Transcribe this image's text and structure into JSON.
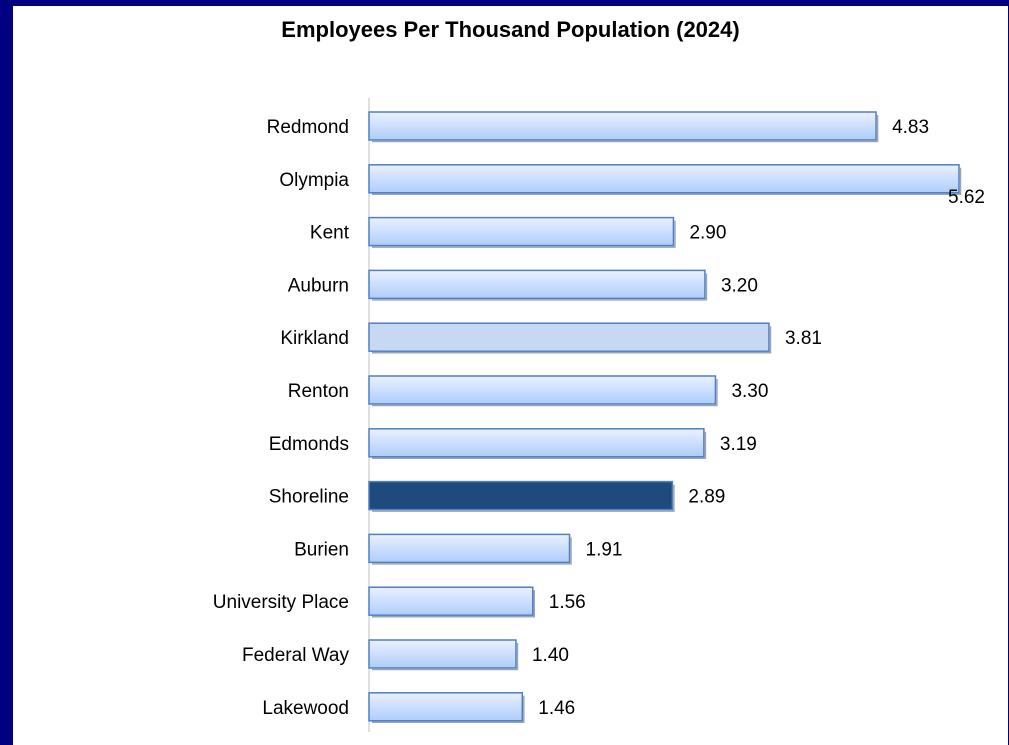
{
  "chart_data": {
    "type": "bar",
    "orientation": "horizontal",
    "title": "Employees Per Thousand Population (2024)",
    "xlabel": "",
    "ylabel": "",
    "xlim": [
      0,
      5.62
    ],
    "grid": false,
    "legend": "none",
    "categories": [
      "Redmond",
      "Olympia",
      "Kent",
      "Auburn",
      "Kirkland",
      "Renton",
      "Edmonds",
      "Shoreline",
      "Burien",
      "University Place",
      "Federal Way",
      "Lakewood"
    ],
    "values": [
      4.83,
      5.62,
      2.9,
      3.2,
      3.81,
      3.3,
      3.19,
      2.89,
      1.91,
      1.56,
      1.4,
      1.46
    ],
    "value_labels": [
      "4.83",
      "5.62",
      "2.90",
      "3.20",
      "3.81",
      "3.30",
      "3.19",
      "2.89",
      "1.91",
      "1.56",
      "1.40",
      "1.46"
    ],
    "highlight": "Shoreline",
    "colors": {
      "bar_fill_light": "#eaf1ff",
      "bar_fill_mid": "#aecdfb",
      "bar_stroke": "#4f7fc4",
      "kirkland_fill": "#c7d9f2",
      "highlight_fill": "#1f4a7d",
      "axis": "#c0c0c0",
      "frame": "#000080"
    }
  }
}
